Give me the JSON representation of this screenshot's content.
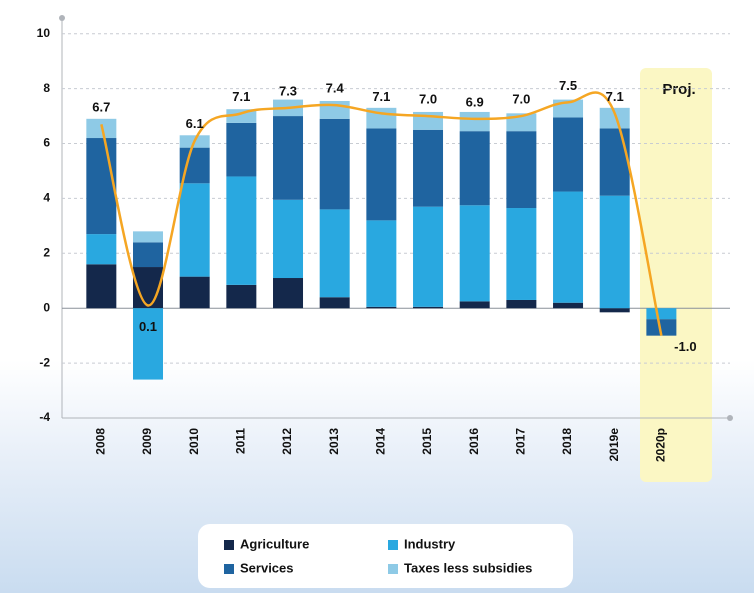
{
  "chart_data": {
    "type": "bar",
    "stacked": true,
    "categories": [
      "2008",
      "2009",
      "2010",
      "2011",
      "2012",
      "2013",
      "2014",
      "2015",
      "2016",
      "2017",
      "2018",
      "2019e",
      "2020p"
    ],
    "series": [
      {
        "name": "Agriculture",
        "color": "#14284b",
        "values": [
          1.6,
          1.5,
          1.15,
          0.85,
          1.1,
          0.4,
          0.05,
          0.05,
          0.25,
          0.3,
          0.2,
          -0.15,
          0
        ]
      },
      {
        "name": "Industry",
        "color": "#29a8e0",
        "values": [
          1.1,
          -2.6,
          3.4,
          3.95,
          2.85,
          3.2,
          3.15,
          3.65,
          3.5,
          3.35,
          4.05,
          4.1,
          -0.4
        ]
      },
      {
        "name": "Services",
        "color": "#1f64a0",
        "values": [
          3.5,
          0.9,
          1.3,
          1.95,
          3.05,
          3.3,
          3.35,
          2.8,
          2.7,
          2.8,
          2.7,
          2.45,
          -0.6
        ]
      },
      {
        "name": "Taxes less subsidies",
        "color": "#8ecae6",
        "values": [
          0.7,
          0.4,
          0.45,
          0.5,
          0.6,
          0.65,
          0.75,
          0.65,
          0.7,
          0.65,
          0.65,
          0.75,
          0
        ]
      }
    ],
    "line": {
      "type": "line",
      "color": "#f5a623",
      "values": [
        6.7,
        0.1,
        6.1,
        7.1,
        7.3,
        7.4,
        7.1,
        7.0,
        6.9,
        7.0,
        7.5,
        7.1,
        -1.0
      ],
      "value_labels": [
        "6.7",
        "0.1",
        "6.1",
        "7.1",
        "7.3",
        "7.4",
        "7.1",
        "7.0",
        "6.9",
        "7.0",
        "7.5",
        "7.1",
        "-1.0"
      ]
    },
    "annotation": "Proj.",
    "ylim": [
      -4,
      10.5
    ],
    "yticks": [
      -4,
      -2,
      0,
      2,
      4,
      6,
      8,
      10
    ],
    "grid": true,
    "legend": "bottom"
  }
}
